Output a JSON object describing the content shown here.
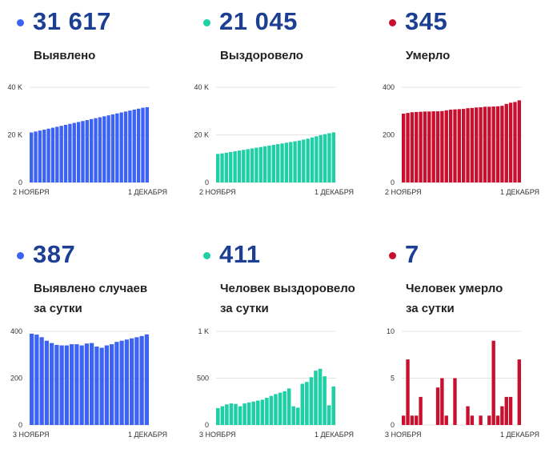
{
  "colors": {
    "blue": "#3d63f5",
    "teal": "#1fcfa6",
    "red": "#c8102e",
    "number": "#1c3f94"
  },
  "stats": [
    {
      "value": "31 617",
      "label1": "Выявлено",
      "label2": ""
    },
    {
      "value": "21 045",
      "label1": "Выздоровело",
      "label2": ""
    },
    {
      "value": "345",
      "label1": "Умерло",
      "label2": ""
    },
    {
      "value": "387",
      "label1": "Выявлено случаев",
      "label2": "за сутки"
    },
    {
      "value": "411",
      "label1": "Человек выздоровело",
      "label2": "за сутки"
    },
    {
      "value": "7",
      "label1": "Человек умерло",
      "label2": "за сутки"
    }
  ],
  "chart_data": [
    {
      "type": "bar",
      "color": "blue",
      "x_start": "2 НОЯБРЯ",
      "x_end": "1 ДЕКАБРЯ",
      "y_ticks": [
        "40 K",
        "20 K",
        "0"
      ],
      "y_tick_values": [
        40000,
        20000,
        0
      ],
      "ylim": [
        0,
        40000
      ],
      "values": [
        21000,
        21400,
        21800,
        22200,
        22600,
        23000,
        23400,
        23800,
        24200,
        24600,
        25000,
        25400,
        25800,
        26200,
        26600,
        27000,
        27400,
        27800,
        28200,
        28600,
        29000,
        29400,
        29800,
        30200,
        30600,
        31000,
        31400,
        31617
      ]
    },
    {
      "type": "bar",
      "color": "teal",
      "x_start": "2 НОЯБРЯ",
      "x_end": "1 ДЕКАБРЯ",
      "y_ticks": [
        "40 K",
        "20 K",
        "0"
      ],
      "y_tick_values": [
        40000,
        20000,
        0
      ],
      "ylim": [
        0,
        40000
      ],
      "values": [
        12000,
        12200,
        12500,
        12800,
        13100,
        13400,
        13700,
        14000,
        14300,
        14600,
        14900,
        15200,
        15500,
        15800,
        16100,
        16400,
        16700,
        17000,
        17300,
        17600,
        18000,
        18400,
        18900,
        19400,
        19900,
        20300,
        20700,
        21045
      ]
    },
    {
      "type": "bar",
      "color": "red",
      "x_start": "2 НОЯБРЯ",
      "x_end": "1 ДЕКАБРЯ",
      "y_ticks": [
        "400",
        "200",
        "0"
      ],
      "y_tick_values": [
        400,
        200,
        0
      ],
      "ylim": [
        0,
        400
      ],
      "values": [
        289,
        292,
        295,
        296,
        297,
        298,
        298,
        299,
        299,
        300,
        303,
        306,
        307,
        308,
        309,
        312,
        313,
        315,
        316,
        318,
        318,
        319,
        320,
        322,
        330,
        335,
        338,
        345
      ]
    },
    {
      "type": "bar",
      "color": "blue",
      "x_start": "3 НОЯБРЯ",
      "x_end": "1 ДЕКАБРЯ",
      "y_ticks": [
        "400",
        "200",
        "0"
      ],
      "y_tick_values": [
        400,
        200,
        0
      ],
      "ylim": [
        0,
        400
      ],
      "values": [
        390,
        386,
        375,
        360,
        350,
        342,
        340,
        340,
        345,
        345,
        340,
        348,
        350,
        335,
        330,
        340,
        345,
        355,
        360,
        365,
        370,
        375,
        380,
        387
      ]
    },
    {
      "type": "bar",
      "color": "teal",
      "x_start": "3 НОЯБРЯ",
      "x_end": "1 ДЕКАБРЯ",
      "y_ticks": [
        "1 K",
        "500",
        "0"
      ],
      "y_tick_values": [
        1000,
        500,
        0
      ],
      "ylim": [
        0,
        1000
      ],
      "values": [
        180,
        200,
        220,
        230,
        225,
        200,
        230,
        240,
        250,
        260,
        270,
        290,
        310,
        330,
        345,
        360,
        390,
        200,
        185,
        440,
        460,
        510,
        580,
        600,
        520,
        210,
        411
      ]
    },
    {
      "type": "bar",
      "color": "red",
      "x_start": "3 НОЯБРЯ",
      "x_end": "1 ДЕКАБРЯ",
      "y_ticks": [
        "10",
        "5",
        "0"
      ],
      "y_tick_values": [
        10,
        5,
        0
      ],
      "ylim": [
        0,
        10
      ],
      "values": [
        1,
        7,
        1,
        1,
        3,
        0,
        0,
        0,
        4,
        5,
        1,
        0,
        5,
        0,
        0,
        2,
        1,
        0,
        1,
        0,
        1,
        9,
        1,
        2,
        3,
        3,
        0,
        7
      ]
    }
  ]
}
